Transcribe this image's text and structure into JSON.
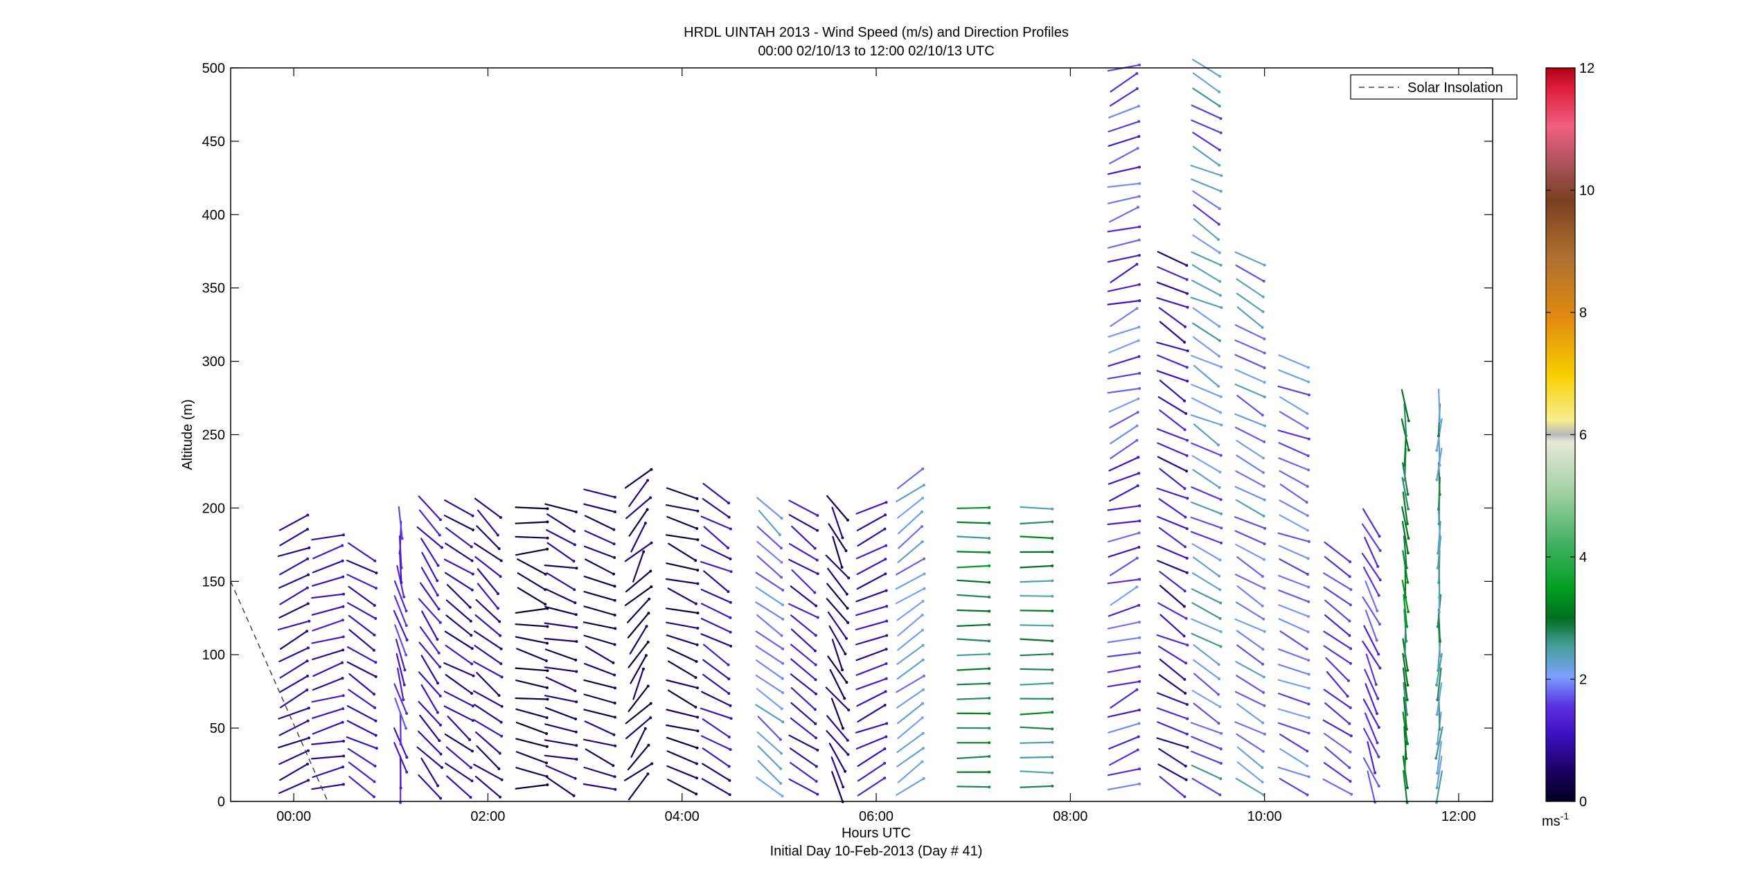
{
  "chart_data": {
    "type": "wind-barb-profile",
    "title": "HRDL UINTAH 2013 - Wind Speed (m/s) and Direction Profiles",
    "subtitle": "00:00 02/10/13 to 12:00 02/10/13  UTC",
    "xlabel": "Hours UTC",
    "xlabel2": "Initial Day 10-Feb-2013 (Day # 41)",
    "ylabel": "Altitude (m)",
    "xlim": [
      -0.65,
      12.35
    ],
    "ylim": [
      0,
      500
    ],
    "xticks": [
      {
        "value": 0,
        "label": "00:00"
      },
      {
        "value": 2,
        "label": "02:00"
      },
      {
        "value": 4,
        "label": "04:00"
      },
      {
        "value": 6,
        "label": "06:00"
      },
      {
        "value": 8,
        "label": "08:00"
      },
      {
        "value": 10,
        "label": "10:00"
      },
      {
        "value": 12,
        "label": "12:00"
      }
    ],
    "yticks": [
      0,
      50,
      100,
      150,
      200,
      250,
      300,
      350,
      400,
      450,
      500
    ],
    "legend": {
      "entries": [
        "Solar Insolation"
      ],
      "placement": "top-right"
    },
    "solar_insolation": {
      "x": [
        -0.65,
        0.35
      ],
      "y": [
        150,
        0
      ]
    },
    "colorbar": {
      "range": [
        0,
        12
      ],
      "ticks": [
        0,
        2,
        4,
        6,
        8,
        10,
        12
      ],
      "units_label": "ms",
      "units_exp": "-1"
    },
    "profiles": [
      {
        "x": 0.0,
        "top": 195,
        "speed": 0.8,
        "dir": 245,
        "dspeed": 0.2,
        "ddir": 10
      },
      {
        "x": 0.35,
        "top": 185,
        "speed": 1.0,
        "dir": 255,
        "dspeed": 0.3,
        "ddir": 12
      },
      {
        "x": 0.7,
        "top": 175,
        "speed": 1.0,
        "dir": 300,
        "dspeed": 0.3,
        "ddir": 10
      },
      {
        "x": 1.1,
        "top": 190,
        "speed": 1.4,
        "dir": 350,
        "dspeed": 0.4,
        "ddir": 14
      },
      {
        "x": 1.4,
        "top": 205,
        "speed": 1.0,
        "dir": 320,
        "dspeed": 0.3,
        "ddir": 12
      },
      {
        "x": 1.7,
        "top": 205,
        "speed": 0.8,
        "dir": 305,
        "dspeed": 0.3,
        "ddir": 12
      },
      {
        "x": 2.0,
        "top": 205,
        "speed": 0.8,
        "dir": 310,
        "dspeed": 0.3,
        "ddir": 12
      },
      {
        "x": 2.45,
        "top": 205,
        "speed": 0.3,
        "dir": 280,
        "dspeed": 0.2,
        "ddir": 25
      },
      {
        "x": 2.75,
        "top": 200,
        "speed": 0.6,
        "dir": 290,
        "dspeed": 0.3,
        "ddir": 15
      },
      {
        "x": 3.15,
        "top": 215,
        "speed": 0.6,
        "dir": 290,
        "dspeed": 0.3,
        "ddir": 12
      },
      {
        "x": 3.55,
        "top": 220,
        "speed": 0.4,
        "dir": 220,
        "dspeed": 0.3,
        "ddir": 25
      },
      {
        "x": 4.0,
        "top": 215,
        "speed": 0.5,
        "dir": 290,
        "dspeed": 0.3,
        "ddir": 12
      },
      {
        "x": 4.35,
        "top": 210,
        "speed": 0.9,
        "dir": 300,
        "dspeed": 0.3,
        "ddir": 12
      },
      {
        "x": 4.9,
        "top": 200,
        "speed": 2.0,
        "dir": 310,
        "dspeed": 0.4,
        "ddir": 10
      },
      {
        "x": 5.25,
        "top": 200,
        "speed": 1.0,
        "dir": 305,
        "dspeed": 0.3,
        "ddir": 10
      },
      {
        "x": 5.6,
        "top": 200,
        "speed": 0.6,
        "dir": 330,
        "dspeed": 0.3,
        "ddir": 15
      },
      {
        "x": 5.95,
        "top": 200,
        "speed": 1.0,
        "dir": 245,
        "dspeed": 0.3,
        "ddir": 10
      },
      {
        "x": 6.35,
        "top": 220,
        "speed": 2.0,
        "dir": 235,
        "dspeed": 0.3,
        "ddir": 8
      },
      {
        "x": 7.0,
        "top": 200,
        "speed": 3.0,
        "dir": 270,
        "dspeed": 0.5,
        "ddir": 4
      },
      {
        "x": 7.65,
        "top": 200,
        "speed": 2.8,
        "dir": 270,
        "dspeed": 0.5,
        "ddir": 4
      },
      {
        "x": 8.55,
        "top": 500,
        "speed": 1.5,
        "dir": 250,
        "dspeed": 0.5,
        "ddir": 15
      },
      {
        "x": 9.05,
        "top": 370,
        "speed": 1.0,
        "dir": 300,
        "dspeed": 0.4,
        "ddir": 15
      },
      {
        "x": 9.4,
        "top": 500,
        "speed": 2.0,
        "dir": 300,
        "dspeed": 0.6,
        "ddir": 12
      },
      {
        "x": 9.85,
        "top": 370,
        "speed": 2.0,
        "dir": 300,
        "dspeed": 0.4,
        "ddir": 10
      },
      {
        "x": 10.3,
        "top": 300,
        "speed": 1.8,
        "dir": 295,
        "dspeed": 0.3,
        "ddir": 10
      },
      {
        "x": 10.75,
        "top": 175,
        "speed": 1.5,
        "dir": 310,
        "dspeed": 0.3,
        "ddir": 12
      },
      {
        "x": 11.1,
        "top": 190,
        "speed": 1.5,
        "dir": 335,
        "dspeed": 0.3,
        "ddir": 12
      },
      {
        "x": 11.45,
        "top": 270,
        "speed": 3.0,
        "dir": 355,
        "dspeed": 0.4,
        "ddir": 8
      },
      {
        "x": 11.8,
        "top": 270,
        "speed": 2.5,
        "dir": 5,
        "dspeed": 0.4,
        "ddir": 8
      }
    ]
  }
}
